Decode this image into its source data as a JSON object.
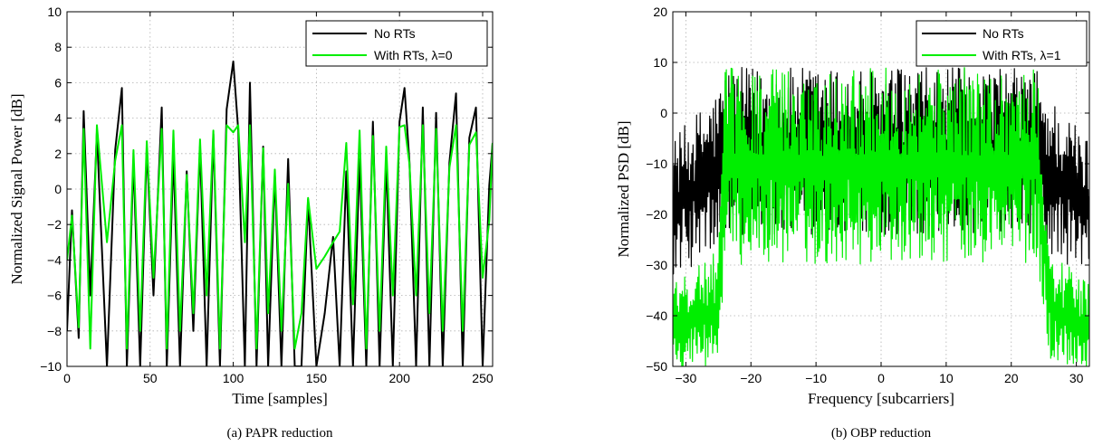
{
  "chart_data": [
    {
      "type": "line",
      "caption": "(a) PAPR reduction",
      "xlabel": "Time [samples]",
      "ylabel": "Normalized Signal Power [dB]",
      "xlim": [
        0,
        256
      ],
      "ylim": [
        -10,
        10
      ],
      "xticks": [
        0,
        50,
        100,
        150,
        200,
        250
      ],
      "yticks": [
        -10,
        -8,
        -6,
        -4,
        -2,
        0,
        2,
        4,
        6,
        8,
        10
      ],
      "grid": true,
      "legend_position": "top-right",
      "series": [
        {
          "name": "No RTs",
          "color": "#000000",
          "x": [
            0,
            3,
            7,
            10,
            14,
            18,
            24,
            29,
            33,
            36,
            40,
            44,
            48,
            52,
            57,
            60,
            64,
            68,
            72,
            76,
            80,
            84,
            88,
            92,
            96,
            100,
            103,
            107,
            110,
            114,
            118,
            121,
            125,
            129,
            133,
            137,
            141,
            145,
            150,
            155,
            160,
            164,
            168,
            172,
            176,
            180,
            184,
            188,
            192,
            196,
            200,
            203,
            206,
            210,
            214,
            218,
            222,
            226,
            230,
            234,
            238,
            242,
            246,
            250,
            254,
            256
          ],
          "y": [
            -8,
            -1.2,
            -8.4,
            4.4,
            -6,
            3.2,
            -10,
            2.2,
            5.7,
            -10,
            1.6,
            -10,
            2.3,
            -6,
            4.6,
            -10,
            1.9,
            -10,
            1,
            -8,
            2.4,
            -10,
            3.1,
            -10,
            4.5,
            7.2,
            3.3,
            -10,
            6,
            -10,
            2.4,
            -10,
            0.8,
            -10,
            1.7,
            -10,
            -10,
            -0.6,
            -10,
            -7,
            -2.7,
            -10,
            1,
            -10,
            1.7,
            -10,
            3.8,
            -10,
            1.6,
            -10,
            3.8,
            5.7,
            1.5,
            -10,
            4.6,
            -10,
            4.3,
            -10,
            1.5,
            5.4,
            -10,
            2.9,
            4.6,
            -10,
            0.2,
            2.6
          ]
        },
        {
          "name": "With RTs, λ=0",
          "color": "#00ee00",
          "x": [
            0,
            3,
            7,
            10,
            14,
            18,
            24,
            29,
            33,
            36,
            40,
            44,
            48,
            52,
            57,
            60,
            64,
            68,
            72,
            76,
            80,
            84,
            88,
            92,
            96,
            100,
            103,
            107,
            110,
            114,
            118,
            121,
            125,
            129,
            133,
            137,
            141,
            145,
            150,
            155,
            160,
            164,
            168,
            172,
            176,
            180,
            184,
            188,
            192,
            196,
            200,
            203,
            206,
            210,
            214,
            218,
            222,
            226,
            230,
            234,
            238,
            242,
            246,
            250,
            254,
            256
          ],
          "y": [
            -4,
            -1.5,
            -7.8,
            3.4,
            -9,
            3.6,
            -3,
            1.6,
            3.6,
            -9,
            2.2,
            -8,
            2.7,
            -5,
            3.4,
            -9,
            3.3,
            -8,
            0.8,
            -7,
            2.8,
            -6,
            3.3,
            -9,
            3.6,
            3.2,
            3.6,
            -3,
            3.6,
            -9,
            2.3,
            -7,
            1.1,
            -8,
            0.3,
            -9,
            -7,
            -0.5,
            -4.5,
            -3.8,
            -3,
            -2.4,
            2.6,
            -6.5,
            3.3,
            -9,
            3,
            -8,
            2.4,
            -6,
            3.5,
            3.6,
            1.4,
            -6,
            3.6,
            -7,
            3.4,
            -8,
            1.2,
            3.6,
            -8,
            2.5,
            3.2,
            -5,
            -1.8,
            2.6
          ]
        }
      ]
    },
    {
      "type": "line",
      "caption": "(b) OBP reduction",
      "xlabel": "Frequency [subcarriers]",
      "ylabel": "Normalized PSD [dB]",
      "xlim": [
        -32,
        32
      ],
      "ylim": [
        -50,
        20
      ],
      "xticks": [
        -30,
        -20,
        -10,
        0,
        10,
        20,
        30
      ],
      "yticks": [
        -50,
        -40,
        -30,
        -20,
        -10,
        0,
        10,
        20
      ],
      "grid": true,
      "legend_position": "top-right",
      "series": [
        {
          "name": "No RTs",
          "color": "#000000",
          "profile": [
            {
              "x": [
                -32,
                -25
              ],
              "upper": [
                -5,
                5
              ],
              "lower": [
                -32,
                -28
              ]
            },
            {
              "x": [
                -25,
                -24
              ],
              "upper": [
                5,
                9
              ],
              "lower": [
                -28,
                -23
              ]
            },
            {
              "x": [
                -24,
                24
              ],
              "upper": [
                9,
                9
              ],
              "lower": [
                -24,
                -24
              ]
            },
            {
              "x": [
                24,
                25
              ],
              "upper": [
                9,
                5
              ],
              "lower": [
                -23,
                -28
              ]
            },
            {
              "x": [
                25,
                32
              ],
              "upper": [
                5,
                -5
              ],
              "lower": [
                -28,
                -32
              ]
            }
          ]
        },
        {
          "name": "With RTs, λ=1",
          "color": "#00ee00",
          "profile": [
            {
              "x": [
                -32,
                -25
              ],
              "upper": [
                -34,
                -27
              ],
              "lower": [
                -50,
                -50
              ]
            },
            {
              "x": [
                -25,
                -24
              ],
              "upper": [
                -27,
                9
              ],
              "lower": [
                -50,
                -30
              ]
            },
            {
              "x": [
                -24,
                24
              ],
              "upper": [
                9,
                9
              ],
              "lower": [
                -30,
                -30
              ]
            },
            {
              "x": [
                24,
                26
              ],
              "upper": [
                9,
                -27
              ],
              "lower": [
                -30,
                -50
              ]
            },
            {
              "x": [
                26,
                32
              ],
              "upper": [
                -27,
                -34
              ],
              "lower": [
                -50,
                -50
              ]
            }
          ]
        }
      ]
    }
  ]
}
